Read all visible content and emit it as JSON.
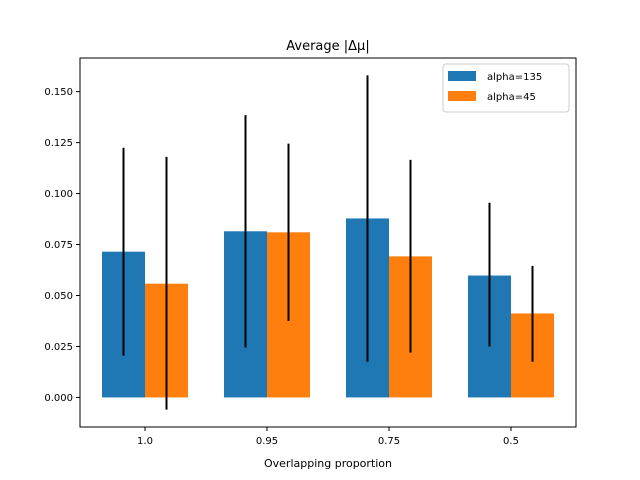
{
  "chart_data": {
    "type": "bar",
    "title": "Average |Δμ|",
    "xlabel": "Overlapping proportion",
    "ylabel": "",
    "categories": [
      "1.0",
      "0.95",
      "0.75",
      "0.5"
    ],
    "series": [
      {
        "name": "alpha=135",
        "color": "#1f77b4",
        "values": [
          0.0715,
          0.0815,
          0.0878,
          0.0598
        ],
        "err_low": [
          0.0205,
          0.0245,
          0.0175,
          0.025
        ],
        "err_high": [
          0.1225,
          0.1385,
          0.158,
          0.0955
        ]
      },
      {
        "name": "alpha=45",
        "color": "#ff7f0e",
        "values": [
          0.0558,
          0.081,
          0.0692,
          0.0412
        ],
        "err_low": [
          -0.006,
          0.0375,
          0.022,
          0.0175
        ],
        "err_high": [
          0.118,
          0.1245,
          0.1165,
          0.0645
        ]
      }
    ],
    "ylim": [
      -0.0145,
      0.1665
    ],
    "yticks": [
      0.0,
      0.025,
      0.05,
      0.075,
      0.1,
      0.125,
      0.15
    ],
    "ytick_labels": [
      "0.000",
      "0.025",
      "0.050",
      "0.075",
      "0.100",
      "0.125",
      "0.150"
    ],
    "grid": false,
    "legend_position": "top-right",
    "error_bar_color": "#000000"
  }
}
